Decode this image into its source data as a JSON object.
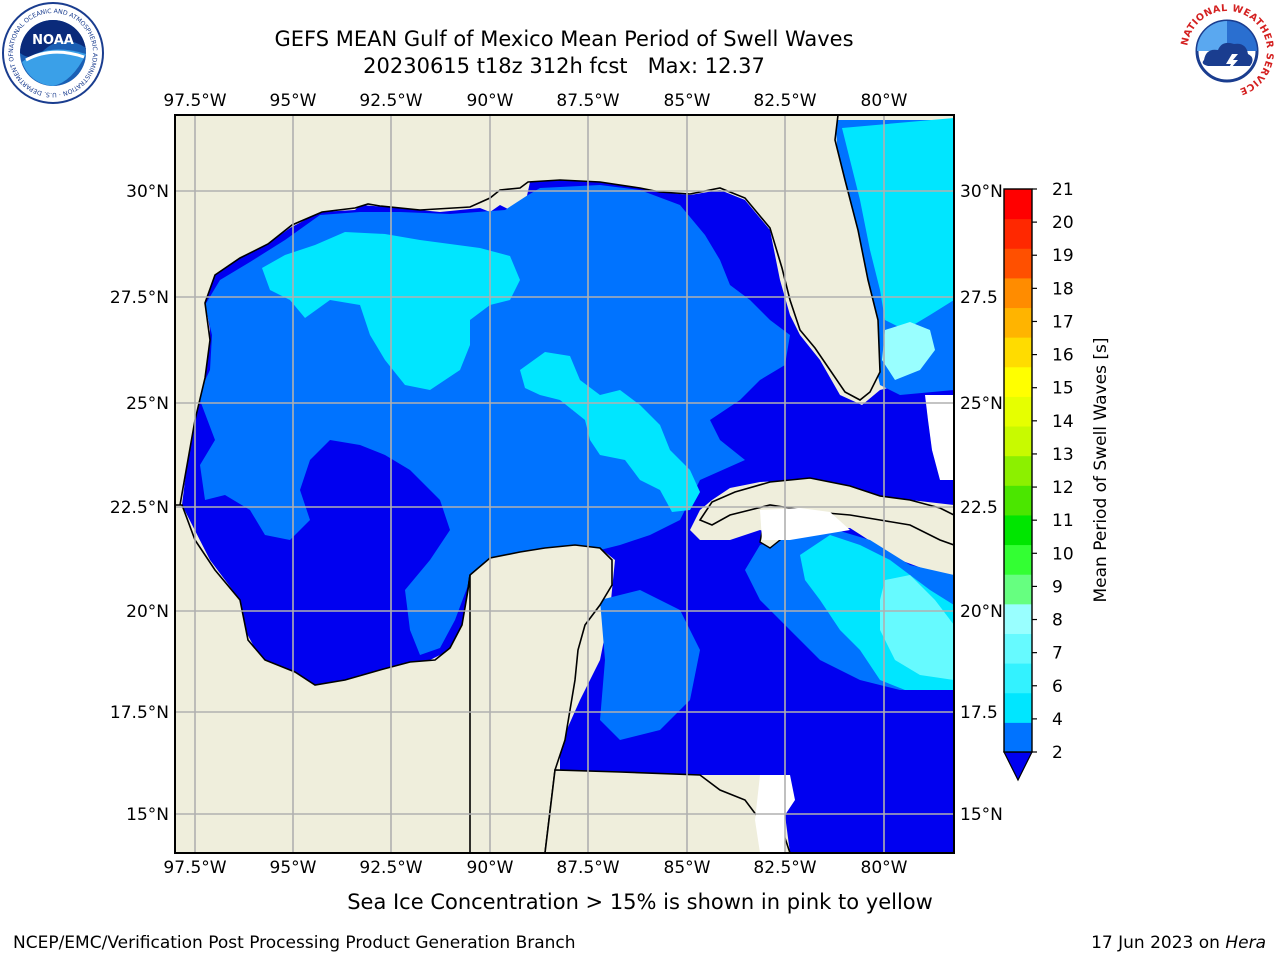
{
  "title": {
    "line1": "GEFS MEAN Gulf of Mexico Mean Period of Swell Waves",
    "line2": "20230615 t18z 312h fcst   Max: 12.37"
  },
  "logos": {
    "left": {
      "name": "noaa-logo",
      "text": "NOAA",
      "ring_text": "NATIONAL OCEANIC AND ATMOSPHERIC ADMINISTRATION · U.S. DEPARTMENT OF COMMERCE"
    },
    "right": {
      "name": "nws-logo",
      "ring_text": "NATIONAL WEATHER SERVICE"
    }
  },
  "map": {
    "lon_ticks": [
      "97.5°W",
      "95°W",
      "92.5°W",
      "90°W",
      "87.5°W",
      "85°W",
      "82.5°W",
      "80°W"
    ],
    "lat_ticks_left": [
      "30°N",
      "27.5°N",
      "25°N",
      "22.5°N",
      "20°N",
      "17.5°N",
      "15°N"
    ],
    "lat_ticks_right": [
      "30°N",
      "27.5",
      "25°N",
      "22.5",
      "20°N",
      "17.5",
      "15°N"
    ],
    "lon_range": [
      -98,
      -78.2
    ],
    "lat_range": [
      14,
      31.8
    ],
    "land_color": "#efeedc",
    "grid": true
  },
  "colorbar": {
    "label": "Mean Period of Swell Waves [s]",
    "ticks": [
      "2",
      "4",
      "6",
      "7",
      "8",
      "9",
      "10",
      "11",
      "12",
      "13",
      "14",
      "15",
      "16",
      "17",
      "18",
      "19",
      "20",
      "21"
    ],
    "colors": [
      "#0073ff",
      "#00e6ff",
      "#33f2ff",
      "#66faff",
      "#99ffff",
      "#66ff80",
      "#33ff33",
      "#00e600",
      "#4be600",
      "#8cf000",
      "#c8fa00",
      "#e6ff00",
      "#ffff00",
      "#ffdc00",
      "#ffb400",
      "#ff8c00",
      "#ff5000",
      "#ff2800",
      "#ff0000"
    ],
    "under_color": "#0000f0",
    "extend": "min"
  },
  "chart_data": {
    "type": "heatmap",
    "title": "GEFS MEAN Gulf of Mexico Mean Period of Swell Waves",
    "subtitle": "20230615 t18z 312h fcst   Max: 12.37",
    "variable": "Mean Period of Swell Waves [s]",
    "max_value": 12.37,
    "levels": [
      2,
      4,
      6,
      7,
      8,
      9,
      10,
      11,
      12,
      13,
      14,
      15,
      16,
      17,
      18,
      19,
      20,
      21
    ],
    "xlim": [
      "98°W",
      "78.2°W"
    ],
    "ylim": [
      "14°N",
      "31.8°N"
    ]
  },
  "note": "Sea Ice Concentration > 15% is shown in pink to yellow",
  "footer": {
    "left": "NCEP/EMC/Verification Post Processing Product Generation Branch",
    "date": "17 Jun 2023 on ",
    "host": "Hera"
  }
}
